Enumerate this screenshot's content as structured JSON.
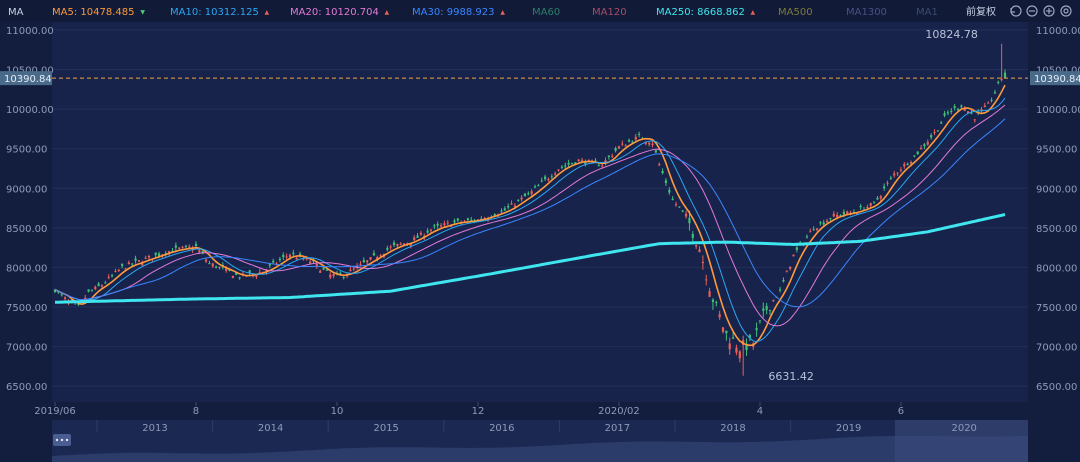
{
  "indicator_label": "MA",
  "adjust_label": "前复权",
  "icons": [
    "undo-icon",
    "zoom-out-icon",
    "zoom-in-icon",
    "settings-icon"
  ],
  "legend": [
    {
      "label": "MA5: 10478.485",
      "color": "#ff9a3c",
      "arrow": "down",
      "arrow_color": "#4ec97a"
    },
    {
      "label": "MA10: 10312.125",
      "color": "#2aa7f5",
      "arrow": "up",
      "arrow_color": "#e8605a"
    },
    {
      "label": "MA20: 10120.704",
      "color": "#e27ad8",
      "arrow": "up",
      "arrow_color": "#e8605a"
    },
    {
      "label": "MA30: 9988.923",
      "color": "#3a86ff",
      "arrow": "up",
      "arrow_color": "#e8605a"
    },
    {
      "label": "MA60",
      "color": "#2a7f6a",
      "arrow": null
    },
    {
      "label": "MA120",
      "color": "#a54d6a",
      "arrow": null
    },
    {
      "label": "MA250: 8668.862",
      "color": "#3fe6f0",
      "arrow": "up",
      "arrow_color": "#e8605a"
    },
    {
      "label": "MA500",
      "color": "#7d7a3a",
      "arrow": null
    },
    {
      "label": "MA1300",
      "color": "#4a4f8a",
      "arrow": null
    },
    {
      "label": "MA1",
      "color": "#3a4a6e",
      "arrow": null
    }
  ],
  "chart_data": {
    "type": "line",
    "y_ticks": [
      "11000.00",
      "10500.00",
      "10000.00",
      "9500.00",
      "9000.00",
      "8500.00",
      "8000.00",
      "7500.00",
      "7000.00",
      "6500.00"
    ],
    "ylim": [
      6300,
      11100
    ],
    "x_ticks": [
      {
        "label": "2019/06",
        "i": 0
      },
      {
        "label": "8",
        "i": 42
      },
      {
        "label": "10",
        "i": 84
      },
      {
        "label": "12",
        "i": 126
      },
      {
        "label": "2020/02",
        "i": 168
      },
      {
        "label": "4",
        "i": 210
      },
      {
        "label": "6",
        "i": 252
      }
    ],
    "current_price": 10390.84,
    "current_price_label": "10390.84",
    "annotations": {
      "high": "10824.78",
      "low": "6631.42"
    },
    "anchors": [
      [
        0,
        7720
      ],
      [
        4,
        7560
      ],
      [
        7,
        7500
      ],
      [
        10,
        7680
      ],
      [
        14,
        7780
      ],
      [
        20,
        8000
      ],
      [
        28,
        8120
      ],
      [
        35,
        8220
      ],
      [
        42,
        8260
      ],
      [
        46,
        8050
      ],
      [
        50,
        7980
      ],
      [
        55,
        7880
      ],
      [
        62,
        7950
      ],
      [
        70,
        8170
      ],
      [
        76,
        8080
      ],
      [
        82,
        7900
      ],
      [
        86,
        7900
      ],
      [
        92,
        8050
      ],
      [
        100,
        8250
      ],
      [
        106,
        8330
      ],
      [
        112,
        8480
      ],
      [
        118,
        8560
      ],
      [
        126,
        8600
      ],
      [
        134,
        8720
      ],
      [
        142,
        8950
      ],
      [
        150,
        9250
      ],
      [
        156,
        9350
      ],
      [
        163,
        9300
      ],
      [
        168,
        9520
      ],
      [
        174,
        9650
      ],
      [
        178,
        9580
      ],
      [
        180,
        9300
      ],
      [
        184,
        8850
      ],
      [
        188,
        8650
      ],
      [
        192,
        8250
      ],
      [
        196,
        7600
      ],
      [
        200,
        7150
      ],
      [
        204,
        6990
      ],
      [
        208,
        7050
      ],
      [
        212,
        7480
      ],
      [
        216,
        7700
      ],
      [
        220,
        8150
      ],
      [
        226,
        8500
      ],
      [
        232,
        8650
      ],
      [
        238,
        8700
      ],
      [
        244,
        8800
      ],
      [
        250,
        9180
      ],
      [
        256,
        9400
      ],
      [
        262,
        9700
      ],
      [
        266,
        9950
      ],
      [
        270,
        10050
      ],
      [
        274,
        9900
      ],
      [
        278,
        10050
      ],
      [
        281,
        10300
      ],
      [
        283,
        10478
      ]
    ],
    "ma250_anchors": [
      [
        0,
        7560
      ],
      [
        40,
        7600
      ],
      [
        70,
        7620
      ],
      [
        100,
        7700
      ],
      [
        130,
        7920
      ],
      [
        160,
        8150
      ],
      [
        180,
        8300
      ],
      [
        200,
        8320
      ],
      [
        220,
        8290
      ],
      [
        240,
        8330
      ],
      [
        260,
        8450
      ],
      [
        283,
        8668
      ]
    ],
    "series": [
      {
        "name": "MA5",
        "color": "#ff9a3c",
        "period": 5,
        "width": 1.6
      },
      {
        "name": "MA10",
        "color": "#2aa7f5",
        "period": 10,
        "width": 1
      },
      {
        "name": "MA20",
        "color": "#e27ad8",
        "period": 20,
        "width": 1
      },
      {
        "name": "MA30",
        "color": "#3a86ff",
        "period": 30,
        "width": 1
      },
      {
        "name": "MA250",
        "color": "#3fe6f0",
        "period": 250,
        "width": 3
      }
    ],
    "navigator_years": [
      "2013",
      "2014",
      "2015",
      "2016",
      "2017",
      "2018",
      "2019",
      "2020"
    ]
  }
}
